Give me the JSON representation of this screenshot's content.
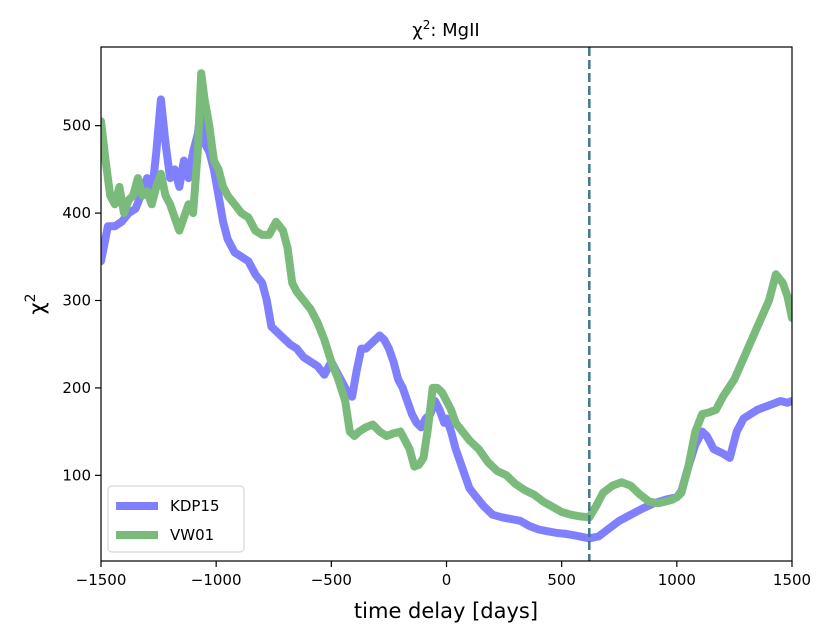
{
  "chart_data": {
    "type": "line",
    "title": "χ²: MgII",
    "title_base": "χ",
    "title_sup": "2",
    "title_rest": ": MgII",
    "xlabel": "time delay [days]",
    "ylabel": "χ",
    "ylabel_sup": "2",
    "xlim": [
      -1500,
      1500
    ],
    "ylim": [
      2,
      590
    ],
    "xticks": [
      -1500,
      -1000,
      -500,
      0,
      500,
      1000,
      1500
    ],
    "xtick_labels": [
      "−1500",
      "−1000",
      "−500",
      "0",
      "500",
      "1000",
      "1500"
    ],
    "yticks": [
      100,
      200,
      300,
      400,
      500
    ],
    "ytick_labels": [
      "100",
      "200",
      "300",
      "400",
      "500"
    ],
    "grid": false,
    "legend_position": "lower-left",
    "vline": {
      "x": 620,
      "style": "dashed",
      "color": "#3f7a8c"
    },
    "series": [
      {
        "name": "KDP15",
        "color": "#8080ff",
        "x": [
          -1500,
          -1470,
          -1440,
          -1410,
          -1380,
          -1350,
          -1320,
          -1300,
          -1280,
          -1260,
          -1250,
          -1240,
          -1220,
          -1200,
          -1180,
          -1160,
          -1140,
          -1120,
          -1100,
          -1080,
          -1065,
          -1050,
          -1030,
          -1010,
          -990,
          -970,
          -950,
          -920,
          -890,
          -860,
          -830,
          -800,
          -780,
          -760,
          -740,
          -720,
          -700,
          -680,
          -650,
          -620,
          -590,
          -560,
          -530,
          -500,
          -470,
          -450,
          -430,
          -410,
          -390,
          -370,
          -350,
          -330,
          -310,
          -290,
          -270,
          -250,
          -230,
          -210,
          -190,
          -170,
          -150,
          -130,
          -110,
          -90,
          -70,
          -50,
          -30,
          -10,
          0,
          20,
          40,
          60,
          80,
          100,
          130,
          160,
          200,
          240,
          280,
          320,
          360,
          400,
          440,
          480,
          520,
          560,
          600,
          620,
          660,
          700,
          750,
          800,
          850,
          900,
          950,
          1000,
          1020,
          1050,
          1080,
          1110,
          1130,
          1160,
          1200,
          1230,
          1260,
          1290,
          1320,
          1350,
          1400,
          1450,
          1480,
          1500
        ],
        "y": [
          345,
          385,
          385,
          390,
          400,
          405,
          425,
          440,
          420,
          470,
          500,
          530,
          480,
          440,
          450,
          430,
          460,
          440,
          470,
          490,
          520,
          480,
          470,
          450,
          420,
          390,
          370,
          355,
          350,
          345,
          330,
          320,
          300,
          270,
          265,
          260,
          255,
          250,
          245,
          235,
          230,
          225,
          215,
          230,
          215,
          205,
          195,
          190,
          220,
          245,
          245,
          250,
          255,
          260,
          255,
          245,
          230,
          210,
          200,
          185,
          170,
          160,
          155,
          165,
          170,
          185,
          175,
          160,
          165,
          150,
          130,
          115,
          100,
          85,
          75,
          65,
          55,
          52,
          50,
          48,
          42,
          38,
          36,
          34,
          33,
          31,
          29,
          28,
          30,
          38,
          48,
          55,
          62,
          68,
          72,
          75,
          82,
          110,
          135,
          150,
          145,
          130,
          125,
          120,
          150,
          165,
          170,
          175,
          180,
          185,
          183,
          185
        ]
      },
      {
        "name": "VW01",
        "color": "#7aba7a",
        "x": [
          -1500,
          -1480,
          -1460,
          -1440,
          -1420,
          -1400,
          -1380,
          -1360,
          -1340,
          -1320,
          -1300,
          -1280,
          -1260,
          -1240,
          -1220,
          -1200,
          -1180,
          -1160,
          -1140,
          -1120,
          -1100,
          -1080,
          -1065,
          -1050,
          -1030,
          -1010,
          -990,
          -970,
          -950,
          -920,
          -890,
          -860,
          -830,
          -800,
          -770,
          -740,
          -710,
          -690,
          -670,
          -650,
          -620,
          -590,
          -560,
          -530,
          -500,
          -470,
          -440,
          -420,
          -400,
          -380,
          -350,
          -320,
          -290,
          -260,
          -230,
          -200,
          -180,
          -160,
          -140,
          -120,
          -100,
          -80,
          -60,
          -40,
          -20,
          0,
          20,
          40,
          70,
          100,
          140,
          180,
          220,
          260,
          300,
          340,
          380,
          420,
          460,
          500,
          540,
          580,
          620,
          650,
          680,
          720,
          760,
          800,
          840,
          880,
          920,
          950,
          980,
          1000,
          1020,
          1050,
          1080,
          1110,
          1140,
          1170,
          1200,
          1250,
          1300,
          1350,
          1400,
          1430,
          1460,
          1480,
          1500
        ],
        "y": [
          505,
          460,
          420,
          410,
          430,
          400,
          415,
          420,
          440,
          420,
          425,
          410,
          430,
          445,
          420,
          410,
          395,
          380,
          395,
          410,
          400,
          470,
          560,
          530,
          500,
          460,
          450,
          430,
          420,
          410,
          400,
          395,
          380,
          375,
          375,
          390,
          380,
          360,
          320,
          310,
          300,
          290,
          275,
          255,
          230,
          210,
          185,
          150,
          145,
          150,
          155,
          158,
          150,
          145,
          148,
          150,
          140,
          130,
          110,
          112,
          120,
          155,
          200,
          200,
          195,
          185,
          175,
          160,
          150,
          140,
          130,
          115,
          105,
          100,
          90,
          83,
          78,
          70,
          64,
          58,
          55,
          53,
          52,
          65,
          80,
          88,
          92,
          88,
          78,
          70,
          68,
          70,
          72,
          75,
          80,
          110,
          150,
          170,
          172,
          175,
          190,
          210,
          240,
          270,
          300,
          330,
          320,
          305,
          280
        ]
      }
    ]
  }
}
